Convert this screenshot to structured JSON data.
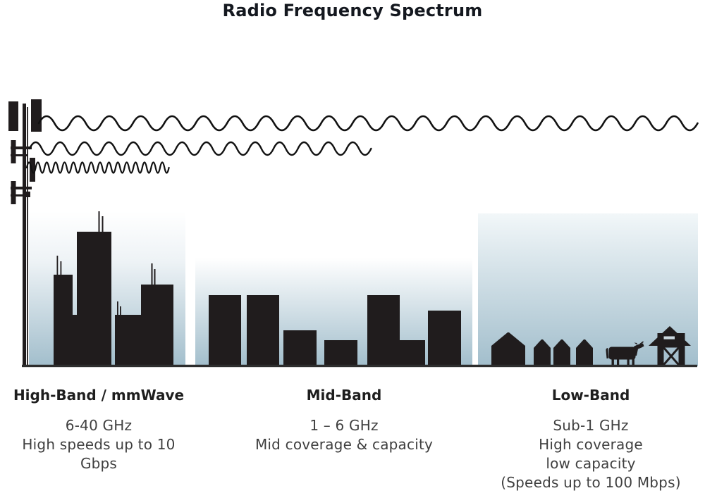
{
  "title": "Radio Frequency Spectrum",
  "colors": {
    "ink": "#201c1d",
    "wave_stroke": "#111111",
    "sky_top": "#ffffff",
    "sky_bottom": "#a2becc",
    "ground": "#2d2d2d",
    "title_text": "#14181f",
    "body_text": "#3f3f3f"
  },
  "icons": {
    "tower": "cell-tower-icon",
    "top_wave": "low-band-long-wavelength-wave",
    "middle_wave": "mid-band-medium-wavelength-wave",
    "bottom_wave": "high-band-short-wavelength-wave",
    "left_scene": "city-skyline",
    "middle_scene": "mid-density-buildings",
    "right_scene": "houses-cow-barn"
  },
  "sections": [
    {
      "label": "High-Band / mmWave",
      "lines": [
        "6-40 GHz",
        "High speeds up to 10 Gbps"
      ]
    },
    {
      "label": "Mid-Band",
      "lines": [
        "1 – 6 GHz",
        "Mid coverage & capacity"
      ]
    },
    {
      "label": "Low-Band",
      "lines": [
        "Sub-1 GHz",
        "High coverage",
        "low capacity",
        "(Speeds up to 100 Mbps)"
      ]
    }
  ]
}
